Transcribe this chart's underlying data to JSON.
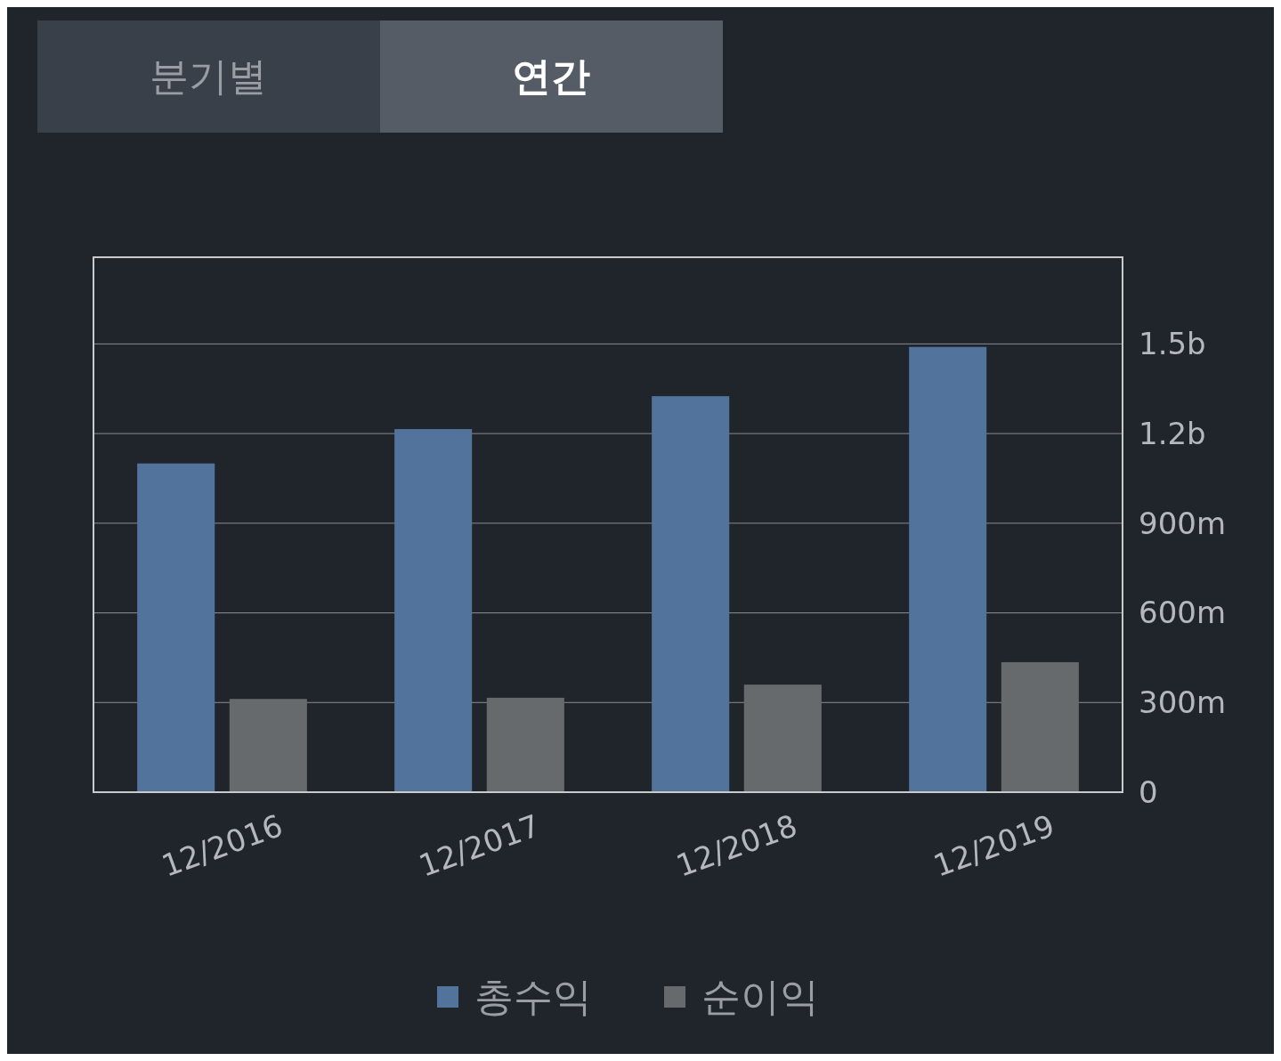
{
  "chart_data": {
    "type": "bar",
    "categories": [
      "12/2016",
      "12/2017",
      "12/2018",
      "12/2019"
    ],
    "series": [
      {
        "name": "총수익",
        "color": "#52739b",
        "values": [
          1100000000,
          1215000000,
          1325000000,
          1490000000
        ]
      },
      {
        "name": "순이익",
        "color": "#666a6c",
        "values": [
          312000000,
          316000000,
          360000000,
          435000000
        ]
      }
    ],
    "ylim": [
      0,
      1790000000
    ],
    "yticks": [
      {
        "value": 0,
        "label": "0"
      },
      {
        "value": 300000000,
        "label": "300m"
      },
      {
        "value": 600000000,
        "label": "600m"
      },
      {
        "value": 900000000,
        "label": "900m"
      },
      {
        "value": 1200000000,
        "label": "1.2b"
      },
      {
        "value": 1500000000,
        "label": "1.5b"
      }
    ],
    "grid": "y",
    "legend": "bottom",
    "annotations": [
      "분기별",
      "연간"
    ]
  }
}
